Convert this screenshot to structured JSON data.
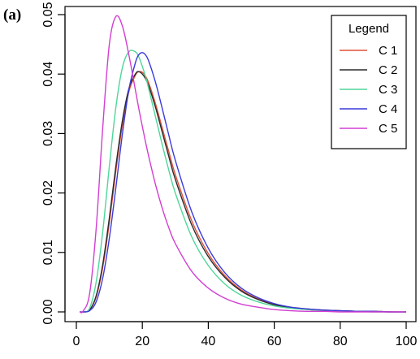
{
  "panel_label": "(a)",
  "chart_data": {
    "type": "line",
    "title": "",
    "xlabel": "",
    "ylabel": "",
    "xlim": [
      0,
      100
    ],
    "ylim": [
      0,
      0.05
    ],
    "x_ticks": [
      0,
      20,
      40,
      60,
      80,
      100
    ],
    "x_tick_labels": [
      "0",
      "20",
      "40",
      "60",
      "80",
      "100"
    ],
    "y_ticks": [
      0.0,
      0.01,
      0.02,
      0.03,
      0.04,
      0.05
    ],
    "y_tick_labels": [
      "0.00",
      "0.01",
      "0.02",
      "0.03",
      "0.04",
      "0.05"
    ],
    "grid": false,
    "legend": {
      "title": "Legend",
      "placement": "top-right"
    },
    "x": [
      1,
      2,
      4,
      6,
      8,
      10,
      12,
      14,
      16,
      18,
      19,
      20,
      21,
      22,
      24,
      26,
      28,
      30,
      35,
      40,
      45,
      50,
      55,
      60,
      65,
      70,
      75,
      80,
      85,
      90,
      95,
      100
    ],
    "series": [
      {
        "name": "C 1",
        "color": "#e0503a",
        "values": [
          0,
          0,
          0.0003,
          0.0025,
          0.0075,
          0.015,
          0.0238,
          0.0316,
          0.0372,
          0.0399,
          0.0404,
          0.0403,
          0.0396,
          0.0384,
          0.035,
          0.031,
          0.027,
          0.0231,
          0.0153,
          0.0098,
          0.0061,
          0.0037,
          0.0022,
          0.0013,
          0.0008,
          0.0005,
          0.0003,
          0.0002,
          0.0001,
          0.0001,
          0,
          0
        ]
      },
      {
        "name": "C 2",
        "color": "#2a2a2a",
        "values": [
          0,
          0,
          0.0003,
          0.0027,
          0.008,
          0.0158,
          0.0246,
          0.0323,
          0.0377,
          0.0401,
          0.0404,
          0.04,
          0.0392,
          0.0379,
          0.0344,
          0.0303,
          0.0262,
          0.0223,
          0.0146,
          0.0093,
          0.0058,
          0.0035,
          0.0021,
          0.0012,
          0.0007,
          0.0004,
          0.0003,
          0.0002,
          0.0001,
          0.0001,
          0,
          0
        ]
      },
      {
        "name": "C 3",
        "color": "#4fd69a",
        "values": [
          0,
          0,
          0.0006,
          0.005,
          0.0135,
          0.0245,
          0.0345,
          0.0412,
          0.0438,
          0.0437,
          0.0428,
          0.0413,
          0.0395,
          0.0374,
          0.0328,
          0.0282,
          0.0239,
          0.02,
          0.0126,
          0.0078,
          0.0047,
          0.0028,
          0.0017,
          0.001,
          0.0006,
          0.0004,
          0.0002,
          0.0001,
          0.0001,
          0,
          0,
          0
        ]
      },
      {
        "name": "C 4",
        "color": "#3a3adc",
        "values": [
          0,
          0,
          0.0002,
          0.0017,
          0.0057,
          0.0124,
          0.021,
          0.0301,
          0.0376,
          0.0421,
          0.0433,
          0.0436,
          0.0432,
          0.0421,
          0.0386,
          0.0343,
          0.0298,
          0.0255,
          0.0168,
          0.0107,
          0.0066,
          0.004,
          0.0024,
          0.0014,
          0.0008,
          0.0005,
          0.0003,
          0.0002,
          0.0001,
          0.0001,
          0,
          0
        ]
      },
      {
        "name": "C 5",
        "color": "#d23ed2",
        "values": [
          0,
          0.0001,
          0.003,
          0.014,
          0.031,
          0.045,
          0.0497,
          0.048,
          0.043,
          0.037,
          0.034,
          0.0312,
          0.0285,
          0.026,
          0.0214,
          0.0175,
          0.0142,
          0.0115,
          0.0068,
          0.004,
          0.0023,
          0.0013,
          0.0008,
          0.0004,
          0.0002,
          0.0001,
          0.0001,
          0,
          0,
          0,
          0,
          0
        ]
      }
    ]
  }
}
